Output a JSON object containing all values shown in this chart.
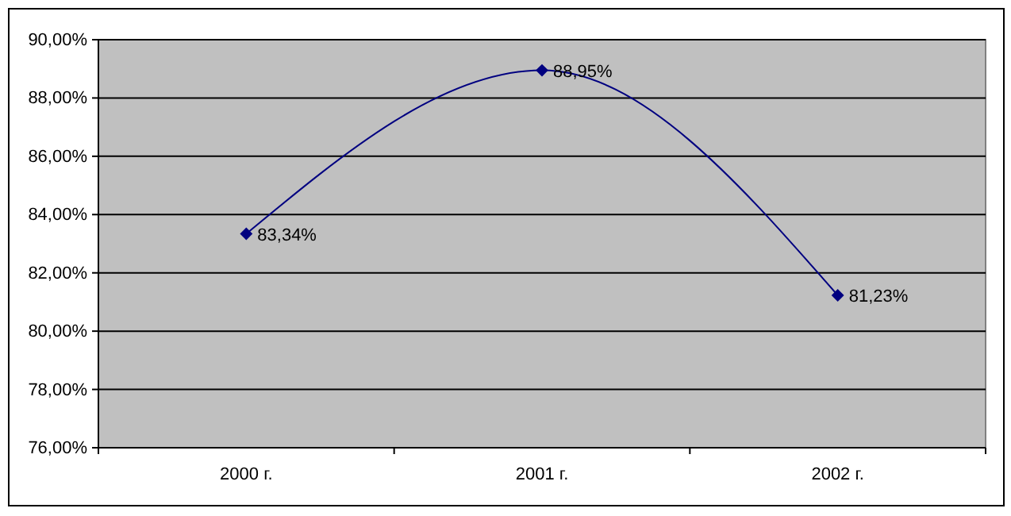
{
  "chart_data": {
    "type": "line",
    "categories": [
      "2000 г.",
      "2001 г.",
      "2002 г."
    ],
    "series": [
      {
        "color": "#000080",
        "values": [
          83.34,
          88.95,
          81.23
        ],
        "value_labels": [
          "83,34%",
          "88,95%",
          "81,23%"
        ]
      }
    ],
    "ylim": [
      76,
      90
    ],
    "yticks": [
      {
        "value": 76,
        "label": "76,00%"
      },
      {
        "value": 78,
        "label": "78,00%"
      },
      {
        "value": 80,
        "label": "80,00%"
      },
      {
        "value": 82,
        "label": "82,00%"
      },
      {
        "value": 84,
        "label": "84,00%"
      },
      {
        "value": 86,
        "label": "86,00%"
      },
      {
        "value": 88,
        "label": "88,00%"
      },
      {
        "value": 90,
        "label": "90,00%"
      }
    ],
    "grid": "y",
    "marker": "diamond",
    "line_style": "solid"
  }
}
